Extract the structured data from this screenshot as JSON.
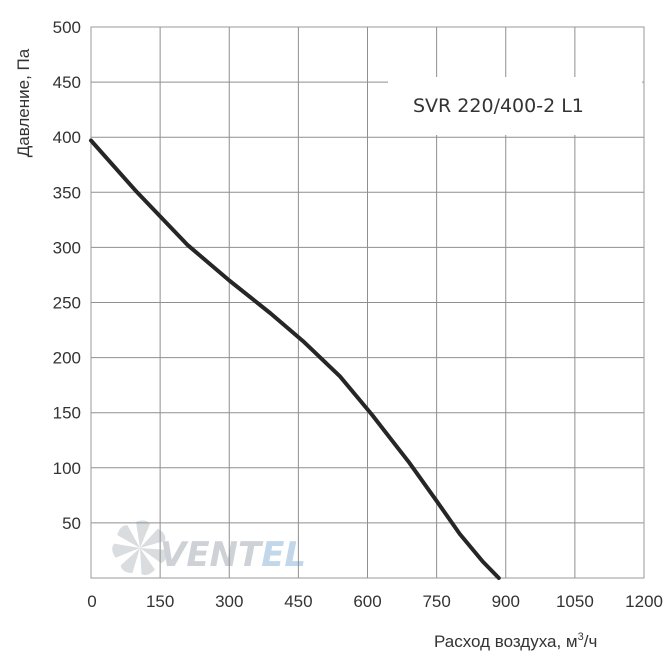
{
  "chart_data": {
    "type": "line",
    "title": "",
    "xlabel": "Расход воздуха, м",
    "xlabel_sup": "3",
    "xlabel_tail": "/ч",
    "ylabel": "Давление, Па",
    "xlim": [
      0,
      1200
    ],
    "ylim": [
      0,
      500
    ],
    "x_ticks": [
      0,
      150,
      300,
      450,
      600,
      750,
      900,
      1050,
      1200
    ],
    "y_ticks": [
      50,
      100,
      150,
      200,
      250,
      300,
      350,
      400,
      450,
      500
    ],
    "x_tick_labels": [
      "0",
      "150",
      "300",
      "450",
      "600",
      "750",
      "900",
      "1050",
      "1200"
    ],
    "y_tick_labels": [
      "50",
      "100",
      "150",
      "200",
      "250",
      "300",
      "350",
      "400",
      "450",
      "500"
    ],
    "grid": true,
    "legend_position": "top-right",
    "series": [
      {
        "name": "SVR 220/400-2 L1",
        "color": "#262626",
        "x": [
          0,
          100,
          210,
          300,
          390,
          460,
          540,
          610,
          690,
          750,
          800,
          850,
          885
        ],
        "y": [
          397,
          350,
          302,
          270,
          240,
          215,
          183,
          148,
          105,
          70,
          40,
          15,
          0
        ]
      }
    ]
  },
  "watermark": {
    "text_a": "VENT",
    "text_b": "EL",
    "color_a": "#c9ced3",
    "color_b": "#bcd3e8"
  }
}
